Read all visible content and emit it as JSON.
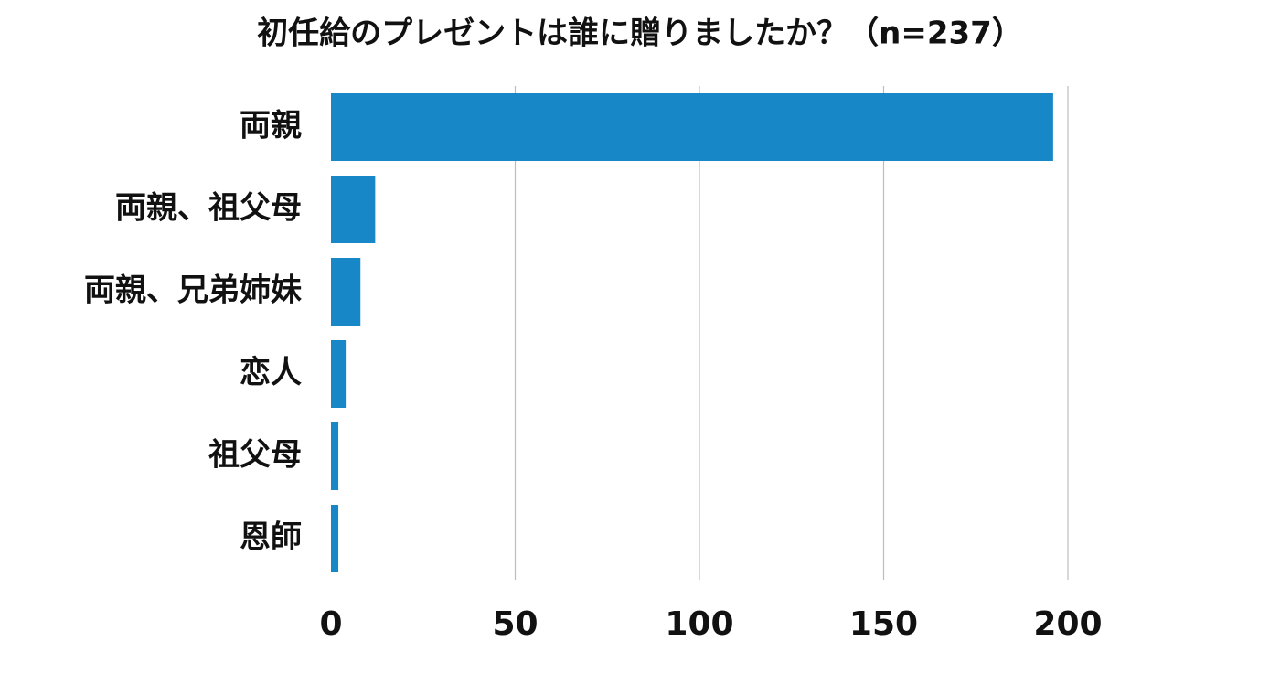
{
  "chart_data": {
    "type": "bar",
    "orientation": "horizontal",
    "title": "初任給のプレゼントは誰に贈りましたか？（n=237）",
    "categories": [
      "両親",
      "両親、祖父母",
      "両親、兄弟姉妹",
      "恋人",
      "祖父母",
      "恩師"
    ],
    "values": [
      196,
      12,
      8,
      4,
      2,
      2
    ],
    "xlim": [
      0,
      200
    ],
    "xticks": [
      "0",
      "50",
      "100",
      "150",
      "200"
    ],
    "xlabel": "",
    "ylabel": "",
    "grid": "vertical",
    "legend": "none",
    "bar_color": "#1887c8"
  }
}
